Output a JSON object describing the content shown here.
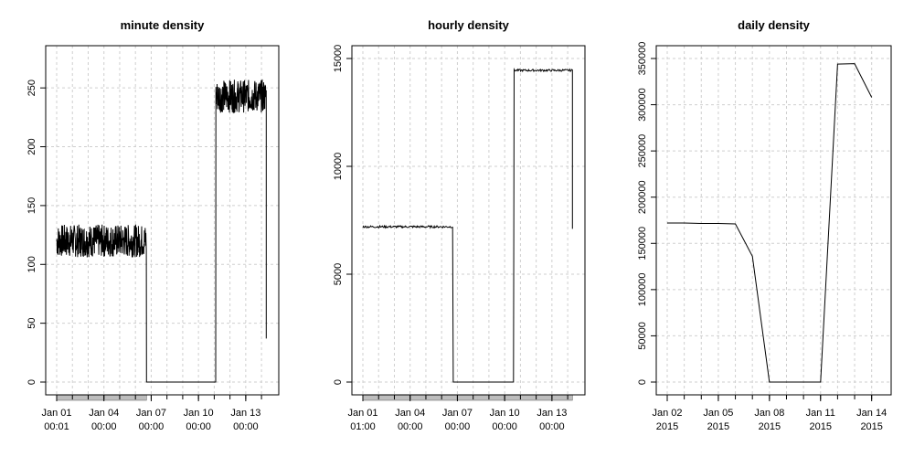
{
  "chart_data": [
    {
      "type": "line",
      "title": "minute density",
      "ylim": [
        0,
        275
      ],
      "yticks": [
        0,
        50,
        100,
        150,
        200,
        250
      ],
      "xlim_days": [
        0,
        13.4
      ],
      "xgrid_days": [
        0,
        1,
        2,
        3,
        4,
        5,
        6,
        7,
        8,
        9,
        10,
        11,
        12,
        13
      ],
      "xticks": [
        {
          "day": 0,
          "line1": "Jan 01",
          "line2": "00:01"
        },
        {
          "day": 3,
          "line1": "Jan 04",
          "line2": "00:00"
        },
        {
          "day": 6,
          "line1": "Jan 07",
          "line2": "00:00"
        },
        {
          "day": 9,
          "line1": "Jan 10",
          "line2": "00:00"
        },
        {
          "day": 12,
          "line1": "Jan 13",
          "line2": "00:00"
        }
      ],
      "rug_days": [
        0,
        5.7
      ],
      "noise": 14,
      "segments": [
        {
          "x0": 0,
          "x1": 5.7,
          "level": 120
        },
        {
          "x0": 5.7,
          "x1": 10.1,
          "level": 0
        },
        {
          "x0": 10.1,
          "x1": 13.3,
          "level": 243
        }
      ],
      "end_value": 37,
      "grid": true
    },
    {
      "type": "line",
      "title": "hourly density",
      "ylim": [
        0,
        15000
      ],
      "yticks": [
        0,
        5000,
        10000,
        15000
      ],
      "xlim_days": [
        0,
        13.4
      ],
      "xgrid_days": [
        0,
        1,
        2,
        3,
        4,
        5,
        6,
        7,
        8,
        9,
        10,
        11,
        12,
        13
      ],
      "xticks": [
        {
          "day": 0,
          "line1": "Jan 01",
          "line2": "01:00"
        },
        {
          "day": 3,
          "line1": "Jan 04",
          "line2": "00:00"
        },
        {
          "day": 6,
          "line1": "Jan 07",
          "line2": "00:00"
        },
        {
          "day": 9,
          "line1": "Jan 10",
          "line2": "00:00"
        },
        {
          "day": 12,
          "line1": "Jan 13",
          "line2": "00:00"
        }
      ],
      "rug_days": [
        0,
        13.3
      ],
      "noise": 50,
      "segments": [
        {
          "x0": 0,
          "x1": 5.7,
          "level": 7200
        },
        {
          "x0": 5.7,
          "x1": 9.6,
          "level": 0
        },
        {
          "x0": 9.6,
          "x1": 13.3,
          "level": 14450
        }
      ],
      "end_value": 7100,
      "grid": true
    },
    {
      "type": "line",
      "title": "daily density",
      "ylim": [
        0,
        350000
      ],
      "yticks": [
        0,
        50000,
        100000,
        150000,
        200000,
        250000,
        300000,
        350000
      ],
      "xlim_days": [
        0,
        12.5
      ],
      "xgrid_days": [
        0,
        1,
        2,
        3,
        4,
        5,
        6,
        7,
        8,
        9,
        10,
        11,
        12
      ],
      "xticks": [
        {
          "day": 0,
          "line1": "Jan 02",
          "line2": "2015"
        },
        {
          "day": 3,
          "line1": "Jan 05",
          "line2": "2015"
        },
        {
          "day": 6,
          "line1": "Jan 08",
          "line2": "2015"
        },
        {
          "day": 9,
          "line1": "Jan 11",
          "line2": "2015"
        },
        {
          "day": 12,
          "line1": "Jan 14",
          "line2": "2015"
        }
      ],
      "x": [
        0,
        1,
        2,
        3,
        4,
        5,
        6,
        7,
        8,
        9,
        10,
        11,
        12
      ],
      "values": [
        172000,
        172000,
        171500,
        171500,
        171000,
        136000,
        0,
        0,
        0,
        0,
        344000,
        344500,
        308000
      ],
      "grid": true
    }
  ]
}
